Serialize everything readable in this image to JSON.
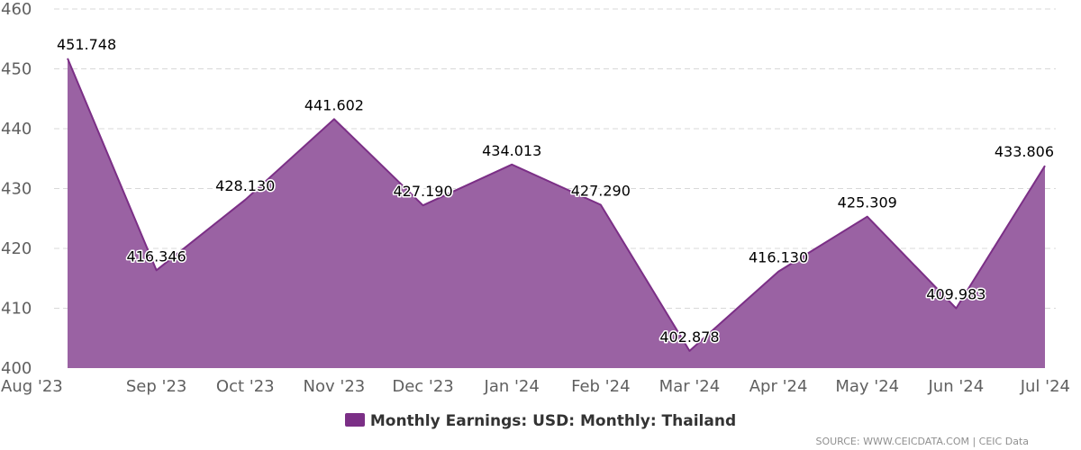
{
  "chart_data": {
    "type": "area",
    "categories": [
      "Aug '23",
      "Sep '23",
      "Oct '23",
      "Nov '23",
      "Dec '23",
      "Jan '24",
      "Feb '24",
      "Mar '24",
      "Apr '24",
      "May '24",
      "Jun '24",
      "Jul '24"
    ],
    "series": [
      {
        "name": "Monthly Earnings: USD: Monthly: Thailand",
        "values": [
          451.748,
          416.346,
          428.13,
          441.602,
          427.19,
          434.013,
          427.29,
          402.878,
          416.13,
          425.309,
          409.983,
          433.806
        ],
        "labels": [
          "451.748",
          "416.346",
          "428.130",
          "441.602",
          "427.190",
          "434.013",
          "427.290",
          "402.878",
          "416.130",
          "425.309",
          "409.983",
          "433.806"
        ]
      }
    ],
    "title": "",
    "xlabel": "",
    "ylabel": "",
    "ylim": [
      400,
      460
    ],
    "yticks": [
      400,
      410,
      420,
      430,
      440,
      450,
      460
    ],
    "grid": true,
    "legend_position": "bottom-center",
    "colors": {
      "fill": "#9a62a3",
      "line": "#7b2f86"
    }
  },
  "legend": {
    "label": "Monthly Earnings: USD: Monthly: Thailand"
  },
  "credits": {
    "text": "SOURCE: WWW.CEICDATA.COM | CEIC Data"
  }
}
